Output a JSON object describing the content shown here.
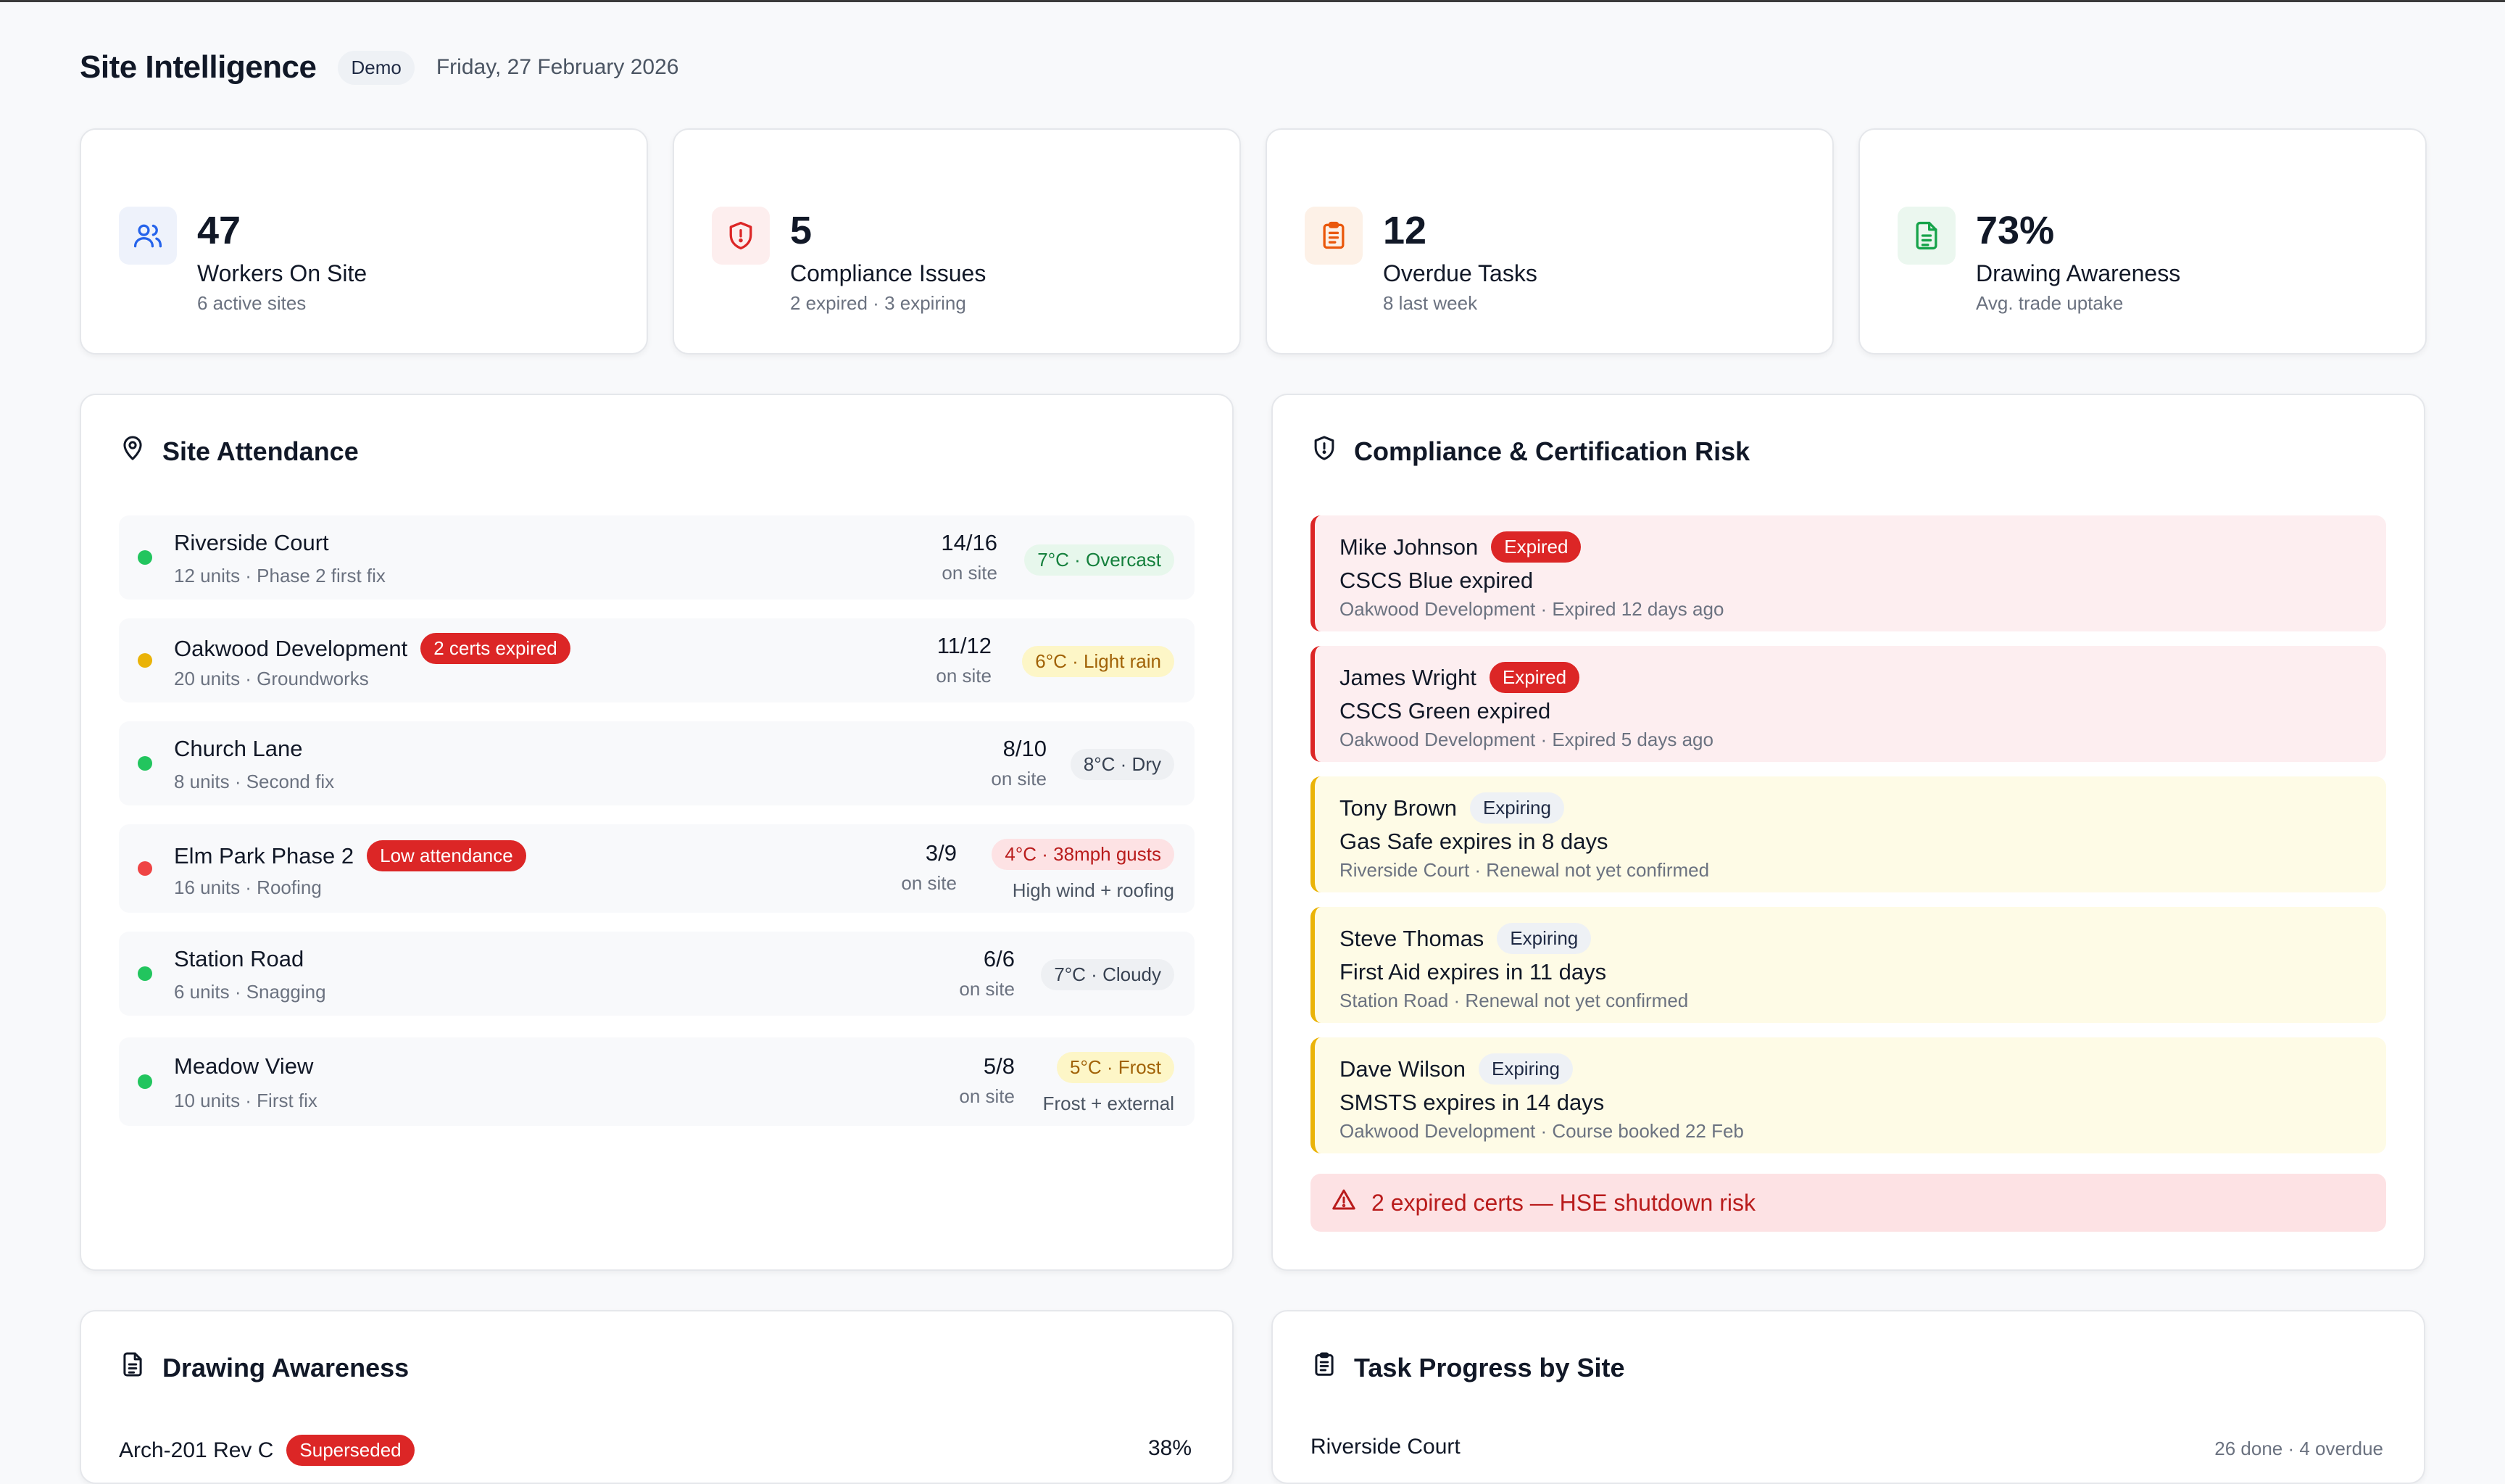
{
  "header": {
    "title": "Site Intelligence",
    "badge": "Demo",
    "date": "Friday, 27 February 2026"
  },
  "stats": [
    {
      "icon": "users-icon",
      "value": "47",
      "label": "Workers On Site",
      "sub": "6 active sites",
      "accent": "#2563eb",
      "bg": "#eef2fb"
    },
    {
      "icon": "shield-alert-icon",
      "value": "5",
      "label": "Compliance Issues",
      "sub": "2 expired · 3 expiring",
      "accent": "#dc2626",
      "bg": "#fdeeee"
    },
    {
      "icon": "clipboard-icon",
      "value": "12",
      "label": "Overdue Tasks",
      "sub": "8 last week",
      "accent": "#ea580c",
      "bg": "#fdf1e7"
    },
    {
      "icon": "document-icon",
      "value": "73%",
      "label": "Drawing Awareness",
      "sub": "Avg. trade uptake",
      "accent": "#16a34a",
      "bg": "#ebf7ef"
    }
  ],
  "attendance": {
    "title": "Site Attendance",
    "on_site_label": "on site",
    "sites": [
      {
        "name": "Riverside Court",
        "meta": "12 units · Phase 2 first fix",
        "count": "14/16",
        "status": "green",
        "badge": "",
        "weather": "7°C · Overcast",
        "weather_style": "green",
        "weather_note": ""
      },
      {
        "name": "Oakwood Development",
        "meta": "20 units · Groundworks",
        "count": "11/12",
        "status": "amber",
        "badge": "2 certs expired",
        "weather": "6°C · Light rain",
        "weather_style": "amber",
        "weather_note": ""
      },
      {
        "name": "Church Lane",
        "meta": "8 units · Second fix",
        "count": "8/10",
        "status": "green",
        "badge": "",
        "weather": "8°C · Dry",
        "weather_style": "grey",
        "weather_note": ""
      },
      {
        "name": "Elm Park Phase 2",
        "meta": "16 units · Roofing",
        "count": "3/9",
        "status": "red",
        "badge": "Low attendance",
        "weather": "4°C · 38mph gusts",
        "weather_style": "red",
        "weather_note": "High wind + roofing"
      },
      {
        "name": "Station Road",
        "meta": "6 units · Snagging",
        "count": "6/6",
        "status": "green",
        "badge": "",
        "weather": "7°C · Cloudy",
        "weather_style": "grey",
        "weather_note": ""
      },
      {
        "name": "Meadow View",
        "meta": "10 units · First fix",
        "count": "5/8",
        "status": "green",
        "badge": "",
        "weather": "5°C · Frost",
        "weather_style": "amber",
        "weather_note": "Frost + external"
      }
    ]
  },
  "compliance": {
    "title": "Compliance & Certification Risk",
    "items": [
      {
        "name": "Mike Johnson",
        "status": "Expired",
        "desc": "CSCS Blue expired",
        "meta": "Oakwood Development · Expired 12 days ago"
      },
      {
        "name": "James Wright",
        "status": "Expired",
        "desc": "CSCS Green expired",
        "meta": "Oakwood Development · Expired 5 days ago"
      },
      {
        "name": "Tony Brown",
        "status": "Expiring",
        "desc": "Gas Safe expires in 8 days",
        "meta": "Riverside Court · Renewal not yet confirmed"
      },
      {
        "name": "Steve Thomas",
        "status": "Expiring",
        "desc": "First Aid expires in 11 days",
        "meta": "Station Road · Renewal not yet confirmed"
      },
      {
        "name": "Dave Wilson",
        "status": "Expiring",
        "desc": "SMSTS expires in 14 days",
        "meta": "Oakwood Development · Course booked 22 Feb"
      }
    ],
    "alert": "2 expired certs — HSE shutdown risk"
  },
  "drawing": {
    "title": "Drawing Awareness",
    "first_row": "Arch-201 Rev C",
    "first_badge": "Superseded",
    "first_pct": "38%"
  },
  "tasks": {
    "title": "Task Progress by Site",
    "first_site": "Riverside Court",
    "first_meta": "26 done · 4 overdue"
  },
  "colors": {
    "green": "#22c55e",
    "amber": "#eab308",
    "red": "#ef4444"
  }
}
